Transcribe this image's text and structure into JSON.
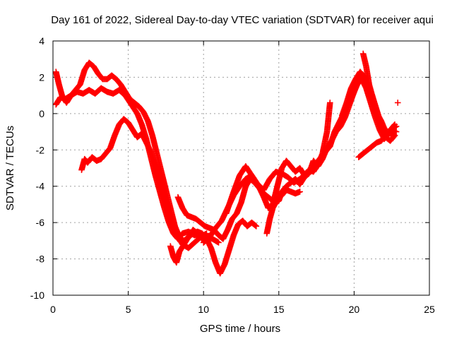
{
  "chart_data": {
    "type": "scatter",
    "title": "Day 161 of 2022, Sidereal Day-to-day VTEC variation (SDTVAR) for receiver aqui",
    "xlabel": "GPS time / hours",
    "ylabel": "SDTVAR / TECUs",
    "xlim": [
      0,
      25
    ],
    "ylim": [
      -10,
      4
    ],
    "xticks": [
      0,
      5,
      10,
      15,
      20,
      25
    ],
    "yticks": [
      -10,
      -8,
      -6,
      -4,
      -2,
      0,
      2,
      4
    ],
    "grid": true,
    "marker": "+",
    "color": "#ff0000",
    "series": [
      {
        "name": "track-1",
        "x": [
          0.2,
          0.5,
          0.8,
          1.2,
          1.6,
          2.0,
          2.4,
          2.8,
          3.2,
          3.6,
          4.0,
          4.4,
          4.8,
          5.2,
          5.6,
          5.9,
          6.2,
          6.5,
          6.8,
          7.1,
          7.4,
          7.7,
          8.0,
          8.3,
          8.6,
          9.0,
          9.4,
          9.8,
          10.2,
          10.6,
          11.0
        ],
        "y": [
          0.5,
          0.9,
          0.8,
          1.0,
          1.2,
          1.1,
          1.3,
          1.1,
          1.4,
          1.2,
          1.1,
          1.3,
          1.0,
          0.5,
          0.0,
          -0.6,
          -1.4,
          -2.4,
          -3.4,
          -4.3,
          -5.2,
          -6.0,
          -6.6,
          -6.9,
          -6.6,
          -6.5,
          -6.7,
          -6.6,
          -6.8,
          -6.9,
          -7.1
        ]
      },
      {
        "name": "track-2",
        "x": [
          0.2,
          0.4,
          0.6,
          0.9,
          1.2,
          1.5,
          1.8,
          2.1,
          2.4,
          2.7,
          3.0,
          3.3,
          3.6,
          3.9,
          4.2,
          4.5,
          4.8,
          5.1,
          5.4,
          5.7,
          6.0,
          6.3,
          6.6,
          6.9,
          7.2,
          7.5,
          7.8,
          8.1,
          8.4,
          8.7,
          9.0,
          9.3,
          9.6,
          9.9,
          10.2
        ],
        "y": [
          2.3,
          1.6,
          1.0,
          0.6,
          1.0,
          1.3,
          1.6,
          2.4,
          2.8,
          2.6,
          2.2,
          1.9,
          1.9,
          2.1,
          1.9,
          1.6,
          1.2,
          0.8,
          0.6,
          0.4,
          0.1,
          -0.4,
          -1.2,
          -2.2,
          -3.2,
          -4.2,
          -5.2,
          -6.2,
          -6.8,
          -7.0,
          -6.8,
          -6.4,
          -6.6,
          -6.9,
          -7.0
        ]
      },
      {
        "name": "track-3",
        "x": [
          1.9,
          2.1,
          2.3,
          2.6,
          2.9,
          3.2,
          3.5,
          3.8,
          4.1,
          4.4,
          4.7,
          5.0,
          5.3,
          5.6,
          5.9,
          6.2,
          6.5,
          6.8,
          7.1,
          7.4,
          7.7,
          8.0,
          8.3,
          8.6,
          9.0,
          9.4,
          9.8,
          10.2
        ],
        "y": [
          -3.1,
          -2.5,
          -2.7,
          -2.4,
          -2.6,
          -2.5,
          -2.2,
          -1.9,
          -1.2,
          -0.6,
          -0.3,
          -0.5,
          -0.9,
          -1.3,
          -1.1,
          -1.6,
          -2.1,
          -2.8,
          -3.6,
          -4.5,
          -5.4,
          -6.2,
          -6.8,
          -7.2,
          -7.4,
          -7.1,
          -6.8,
          -6.6
        ]
      },
      {
        "name": "track-4",
        "x": [
          7.8,
          8.0,
          8.2,
          8.4,
          8.7,
          9.0,
          9.3,
          9.6,
          9.9,
          10.2,
          10.5,
          10.8,
          11.1,
          11.4,
          11.7,
          12.0,
          12.3,
          12.6,
          12.9,
          13.2,
          13.5
        ],
        "y": [
          -7.3,
          -7.9,
          -8.2,
          -7.6,
          -7.2,
          -6.8,
          -6.6,
          -6.5,
          -6.6,
          -6.9,
          -7.4,
          -8.2,
          -8.8,
          -8.3,
          -7.5,
          -6.7,
          -6.1,
          -5.9,
          -6.2,
          -6.0,
          -6.2
        ]
      },
      {
        "name": "track-5",
        "x": [
          8.3,
          8.6,
          8.9,
          9.2,
          9.5,
          9.8,
          10.1,
          10.4,
          10.7,
          11.0,
          11.3,
          11.6,
          11.9,
          12.2,
          12.5,
          12.8,
          13.1,
          13.4,
          13.7,
          14.0,
          14.3,
          14.6,
          14.9,
          15.2,
          15.5,
          15.8,
          16.1,
          16.4
        ],
        "y": [
          -4.6,
          -5.2,
          -5.6,
          -5.7,
          -5.8,
          -6.0,
          -6.2,
          -6.3,
          -6.4,
          -6.7,
          -6.9,
          -6.4,
          -5.8,
          -5.5,
          -4.9,
          -4.0,
          -3.6,
          -3.8,
          -4.1,
          -4.4,
          -4.6,
          -4.8,
          -4.7,
          -4.5,
          -4.2,
          -4.3,
          -4.4,
          -4.3
        ]
      },
      {
        "name": "track-6",
        "x": [
          10.0,
          10.4,
          10.8,
          11.2,
          11.6,
          12.0,
          12.4,
          12.8,
          13.2,
          13.6,
          14.0,
          14.4,
          14.8,
          15.2,
          15.6,
          16.0,
          16.4,
          16.8,
          17.2,
          17.6,
          18.0,
          18.4,
          18.7,
          19.0,
          19.3,
          19.6,
          19.9,
          20.2,
          20.5,
          20.8,
          21.1,
          21.4,
          21.7,
          22.0,
          22.3,
          22.6,
          22.8
        ],
        "y": [
          -7.1,
          -6.8,
          -6.3,
          -5.9,
          -5.2,
          -4.5,
          -4.0,
          -3.6,
          -3.4,
          -3.9,
          -4.2,
          -3.6,
          -3.2,
          -3.3,
          -3.5,
          -3.8,
          -3.6,
          -3.3,
          -3.1,
          -2.6,
          -2.2,
          -1.8,
          -1.0,
          -0.5,
          0.0,
          0.5,
          1.0,
          1.6,
          1.9,
          1.4,
          0.6,
          -0.2,
          -0.9,
          -1.4,
          -1.1,
          -0.8,
          -0.7
        ]
      },
      {
        "name": "track-7",
        "x": [
          11.5,
          12.0,
          12.4,
          12.8,
          13.2,
          13.6,
          14.0,
          14.3,
          14.6,
          14.9,
          15.2,
          15.5,
          15.8,
          16.1,
          16.4,
          16.7,
          17.0,
          17.3,
          17.6,
          17.9,
          18.2,
          18.4
        ],
        "y": [
          -5.5,
          -4.3,
          -3.4,
          -2.9,
          -3.4,
          -3.9,
          -4.6,
          -5.2,
          -5.0,
          -4.0,
          -3.0,
          -2.6,
          -2.9,
          -3.2,
          -3.0,
          -3.4,
          -3.1,
          -3.2,
          -2.8,
          -2.2,
          -1.0,
          0.6
        ]
      },
      {
        "name": "track-8",
        "x": [
          14.2,
          14.4,
          14.6,
          14.8,
          15.0,
          15.2,
          15.5,
          15.8,
          16.1,
          16.4,
          16.7,
          17.0,
          17.3,
          17.6,
          17.9,
          18.2,
          18.5,
          18.8,
          19.1,
          19.4,
          19.7,
          20.0,
          20.3,
          20.6,
          20.9,
          21.2,
          21.5,
          21.8,
          22.1,
          22.4,
          22.7
        ],
        "y": [
          -6.6,
          -5.8,
          -5.2,
          -4.9,
          -4.8,
          -4.3,
          -4.0,
          -3.8,
          -3.6,
          -3.9,
          -3.5,
          -3.3,
          -2.6,
          -2.9,
          -2.5,
          -1.9,
          -1.5,
          -1.0,
          -0.7,
          -0.2,
          0.5,
          1.2,
          1.8,
          2.1,
          1.5,
          1.0,
          0.2,
          -0.6,
          -1.3,
          -1.5,
          -1.2
        ]
      },
      {
        "name": "track-9",
        "x": [
          19.2,
          19.5,
          19.8,
          20.1,
          20.4,
          20.7,
          21.0,
          21.3,
          21.6,
          21.9,
          22.2,
          22.5,
          22.8
        ],
        "y": [
          -0.1,
          0.6,
          1.4,
          1.9,
          2.3,
          2.0,
          1.2,
          0.4,
          -0.3,
          -0.9,
          -1.1,
          -0.9,
          -1.0
        ]
      },
      {
        "name": "track-10",
        "x": [
          20.3,
          20.6,
          20.9,
          21.2,
          21.5,
          21.8,
          22.1,
          22.4,
          22.7
        ],
        "y": [
          -2.4,
          -2.2,
          -2.0,
          -1.8,
          -1.6,
          -1.5,
          -1.2,
          -0.9,
          -0.6
        ]
      },
      {
        "name": "track-11",
        "x": [
          20.6,
          20.8,
          21.0,
          21.2,
          21.4,
          21.6,
          21.8,
          22.0,
          22.2,
          22.4,
          22.7
        ],
        "y": [
          3.3,
          2.6,
          1.6,
          1.0,
          0.4,
          -0.1,
          -0.4,
          -0.8,
          -1.0,
          -1.1,
          -1.2
        ]
      },
      {
        "name": "track-12",
        "x": [
          22.9
        ],
        "y": [
          0.6
        ]
      }
    ]
  }
}
